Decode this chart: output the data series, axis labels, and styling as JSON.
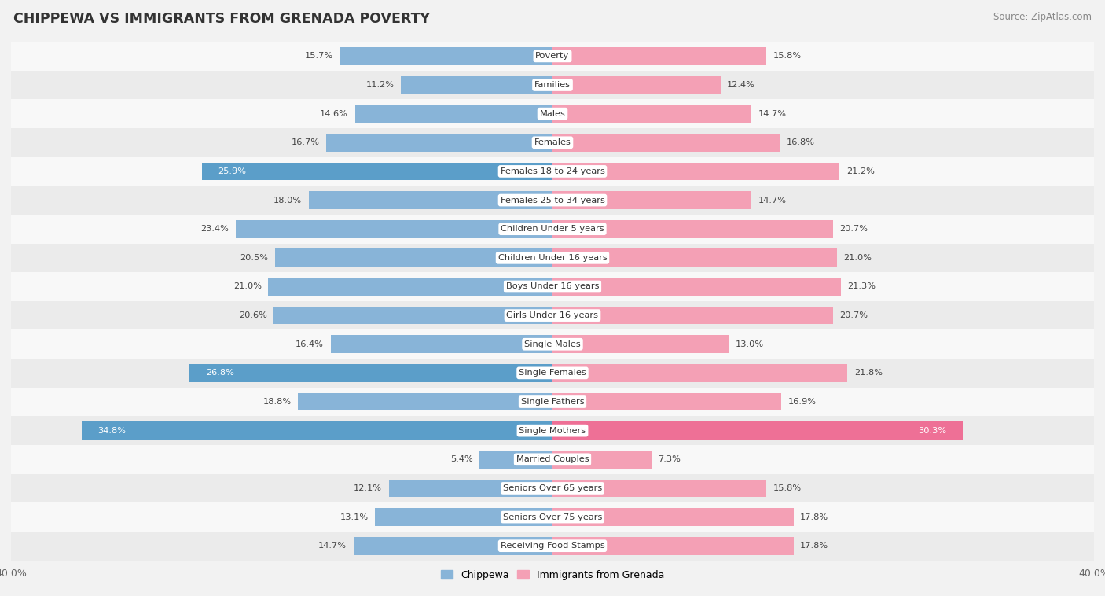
{
  "title": "Chippewa vs Immigrants from Grenada Poverty",
  "source": "Source: ZipAtlas.com",
  "categories": [
    "Poverty",
    "Families",
    "Males",
    "Females",
    "Females 18 to 24 years",
    "Females 25 to 34 years",
    "Children Under 5 years",
    "Children Under 16 years",
    "Boys Under 16 years",
    "Girls Under 16 years",
    "Single Males",
    "Single Females",
    "Single Fathers",
    "Single Mothers",
    "Married Couples",
    "Seniors Over 65 years",
    "Seniors Over 75 years",
    "Receiving Food Stamps"
  ],
  "chippewa": [
    15.7,
    11.2,
    14.6,
    16.7,
    25.9,
    18.0,
    23.4,
    20.5,
    21.0,
    20.6,
    16.4,
    26.8,
    18.8,
    34.8,
    5.4,
    12.1,
    13.1,
    14.7
  ],
  "grenada": [
    15.8,
    12.4,
    14.7,
    16.8,
    21.2,
    14.7,
    20.7,
    21.0,
    21.3,
    20.7,
    13.0,
    21.8,
    16.9,
    30.3,
    7.3,
    15.8,
    17.8,
    17.8
  ],
  "chippewa_color": "#88b4d8",
  "grenada_color": "#f4a0b5",
  "chippewa_color_highlight": "#5b9ec9",
  "grenada_color_highlight": "#ee7096",
  "bar_height": 0.62,
  "xlim": 40.0,
  "bg_color": "#f2f2f2",
  "row_color_light": "#f8f8f8",
  "row_color_dark": "#ebebeb",
  "highlight_threshold": 24.5
}
